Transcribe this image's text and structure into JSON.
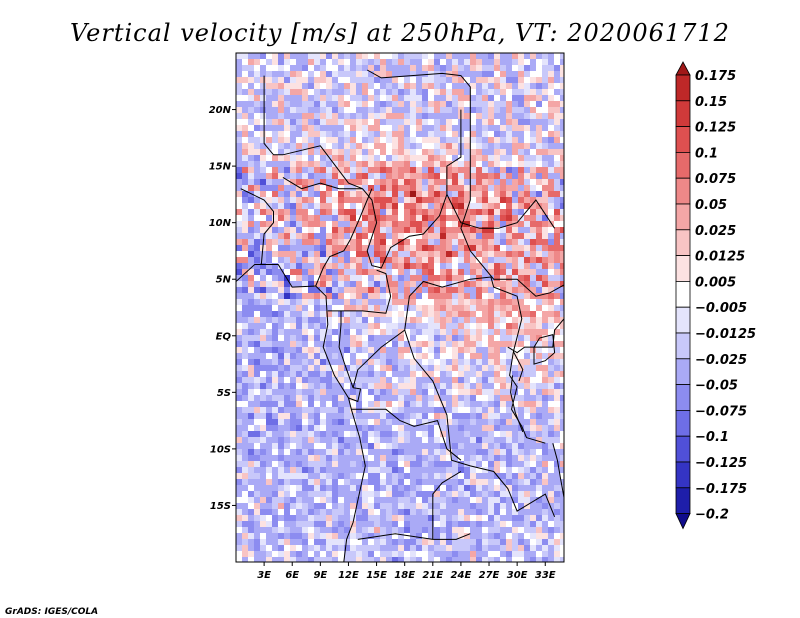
{
  "chart_data": {
    "type": "heatmap",
    "title": "Vertical velocity [m/s] at 250hPa, VT: 2020061712",
    "xlabel": "",
    "ylabel": "",
    "xlim": [
      0,
      35
    ],
    "ylim": [
      -20,
      25
    ],
    "x_ticks": [
      {
        "value": 3,
        "label": "3E"
      },
      {
        "value": 6,
        "label": "6E"
      },
      {
        "value": 9,
        "label": "9E"
      },
      {
        "value": 12,
        "label": "12E"
      },
      {
        "value": 15,
        "label": "15E"
      },
      {
        "value": 18,
        "label": "18E"
      },
      {
        "value": 21,
        "label": "21E"
      },
      {
        "value": 24,
        "label": "24E"
      },
      {
        "value": 27,
        "label": "27E"
      },
      {
        "value": 30,
        "label": "30E"
      },
      {
        "value": 33,
        "label": "33E"
      }
    ],
    "y_ticks": [
      {
        "value": 20,
        "label": "20N"
      },
      {
        "value": 15,
        "label": "15N"
      },
      {
        "value": 10,
        "label": "10N"
      },
      {
        "value": 5,
        "label": "5N"
      },
      {
        "value": 0,
        "label": "EQ"
      },
      {
        "value": -5,
        "label": "5S"
      },
      {
        "value": -10,
        "label": "10S"
      },
      {
        "value": -15,
        "label": "15S"
      }
    ],
    "colorbar": {
      "levels": [
        "0.175",
        "0.15",
        "0.125",
        "0.1",
        "0.075",
        "0.05",
        "0.025",
        "0.0125",
        "0.005",
        "−0.005",
        "−0.0125",
        "−0.025",
        "−0.05",
        "−0.075",
        "−0.1",
        "−0.125",
        "−0.175",
        "−0.2"
      ],
      "colors": [
        "#a01818",
        "#be2828",
        "#d03a3a",
        "#de5050",
        "#e66a6a",
        "#ee8888",
        "#f4a6a6",
        "#f8c4c4",
        "#fce2e2",
        "#ffffff",
        "#e4e4fc",
        "#c8c8fa",
        "#aaaaf6",
        "#8c8cf0",
        "#6e6ee6",
        "#5050d8",
        "#3434c4",
        "#1e1eaa",
        "#100c8c"
      ]
    },
    "grid": false,
    "legend": "right"
  },
  "footer": {
    "credit": "GrADS: IGES/COLA"
  }
}
